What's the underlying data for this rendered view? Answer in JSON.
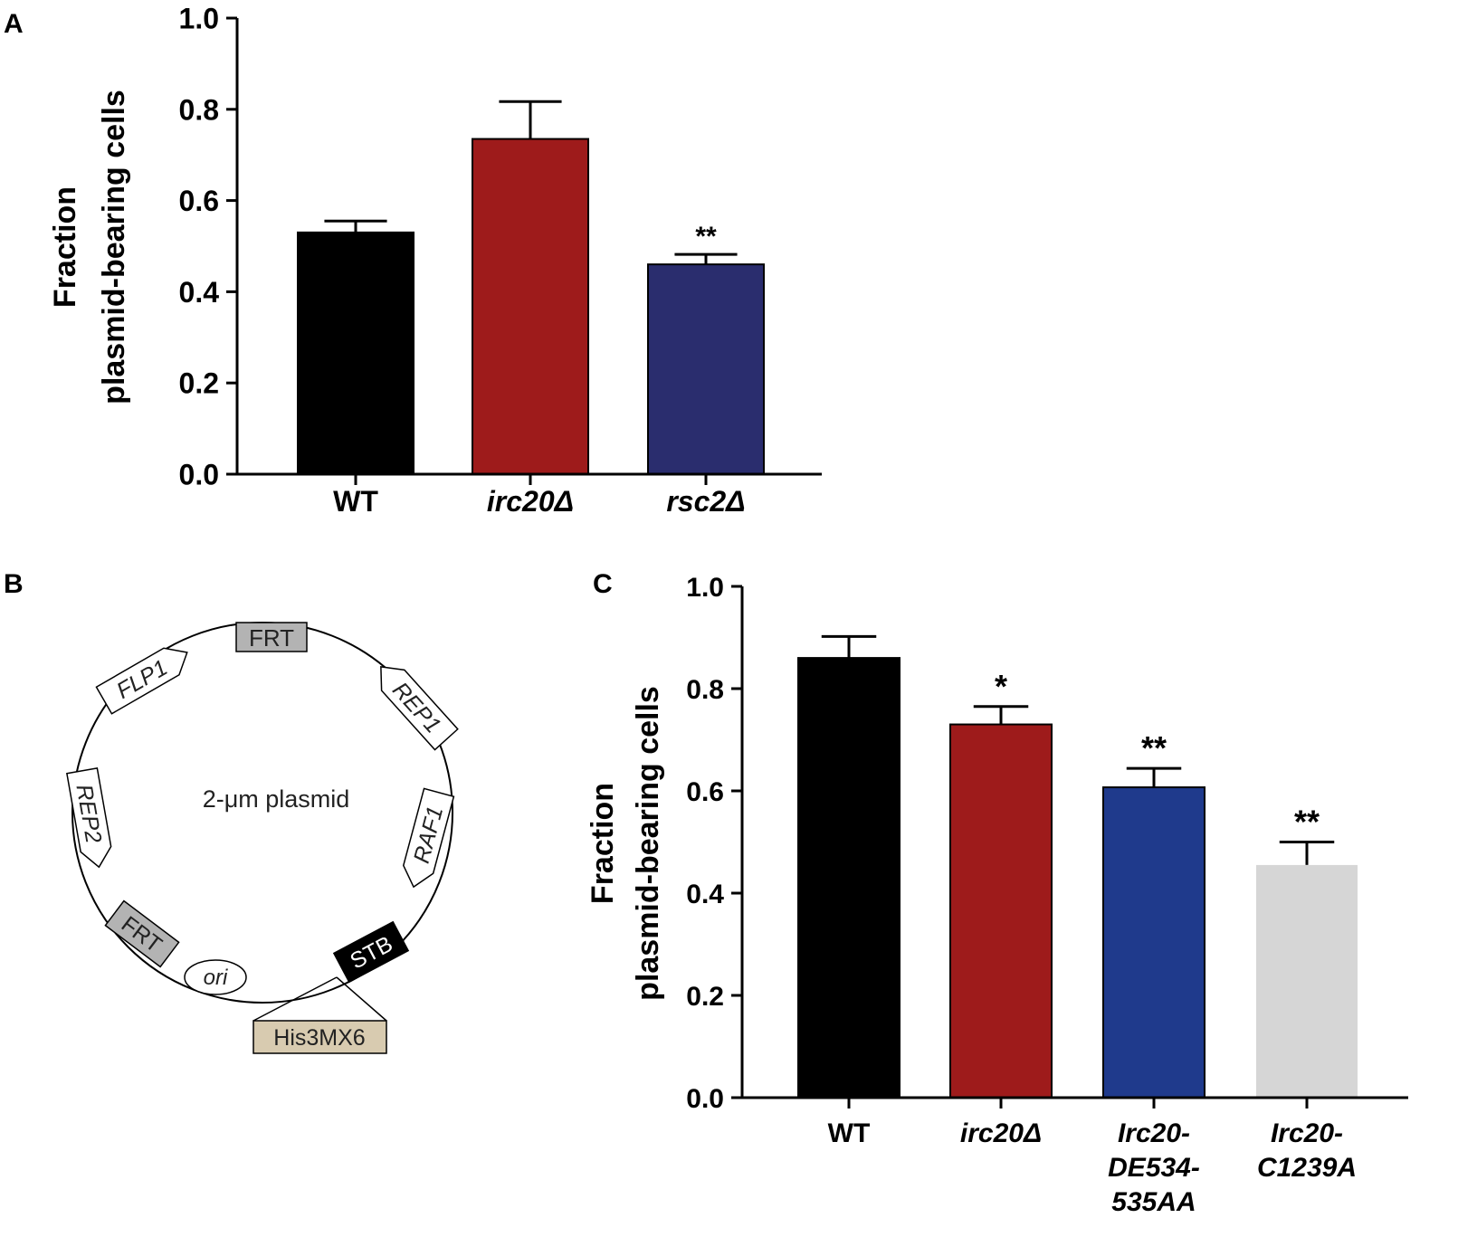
{
  "panels": {
    "a": "A",
    "b": "B",
    "c": "C"
  },
  "chart_data": [
    {
      "id": "A",
      "type": "bar",
      "title": "",
      "xlabel": "",
      "ylabel_line1": "Fraction",
      "ylabel_line2": "plasmid-bearing cells",
      "ylim": [
        0,
        1.0
      ],
      "yticks": [
        "0.0",
        "0.2",
        "0.4",
        "0.6",
        "0.8",
        "1.0"
      ],
      "categories": [
        {
          "lines": [
            "WT"
          ],
          "italic": false
        },
        {
          "lines": [
            "irc20Δ"
          ],
          "italic": true
        },
        {
          "lines": [
            "rsc2Δ"
          ],
          "italic": true
        }
      ],
      "values": [
        0.53,
        0.735,
        0.46
      ],
      "errors": [
        0.025,
        0.082,
        0.022
      ],
      "significance": [
        "",
        "",
        "**"
      ],
      "colors": [
        "#000000",
        "#9e1b1b",
        "#2a2d6e"
      ]
    },
    {
      "id": "C",
      "type": "bar",
      "title": "",
      "xlabel": "",
      "ylabel_line1": "Fraction",
      "ylabel_line2": "plasmid-bearing cells",
      "ylim": [
        0,
        1.0
      ],
      "yticks": [
        "0.0",
        "0.2",
        "0.4",
        "0.6",
        "0.8",
        "1.0"
      ],
      "categories": [
        {
          "lines": [
            "WT"
          ],
          "italic": false
        },
        {
          "lines": [
            "irc20Δ"
          ],
          "italic": true
        },
        {
          "lines": [
            "Irc20-",
            "DE534-",
            "535AA"
          ],
          "italic": true
        },
        {
          "lines": [
            "Irc20-",
            "C1239A"
          ],
          "italic": true
        }
      ],
      "values": [
        0.86,
        0.73,
        0.607,
        0.455
      ],
      "errors": [
        0.042,
        0.035,
        0.037,
        0.045
      ],
      "significance": [
        "",
        "*",
        "**",
        "**"
      ],
      "colors": [
        "#000000",
        "#9e1b1b",
        "#1f3a8c",
        "#d6d6d6"
      ]
    }
  ],
  "plasmid": {
    "center_label": "2-μm plasmid",
    "frt_top": "FRT",
    "frt_bottom": "FRT",
    "flp1": "FLP1",
    "rep1": "REP1",
    "raf1": "RAF1",
    "rep2": "REP2",
    "stb": "STB",
    "ori": "ori",
    "marker": "His3MX6",
    "colors": {
      "frt": "#b3b3b3",
      "stb": "#000000",
      "marker": "#d8cbb0"
    }
  }
}
